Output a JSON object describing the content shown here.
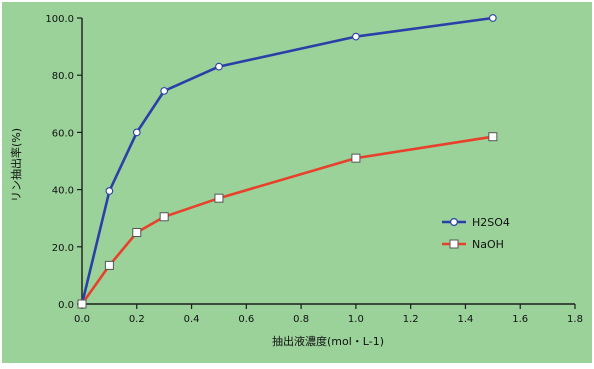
{
  "chart_data": {
    "type": "line",
    "title": "",
    "xlabel": "抽出液濃度(mol・L-1)",
    "ylabel": "リン抽出率(%)",
    "xlim": [
      0.0,
      1.8
    ],
    "ylim": [
      0.0,
      100.0
    ],
    "x_ticks": [
      "0.0",
      "0.2",
      "0.4",
      "0.6",
      "0.8",
      "1.0",
      "1.2",
      "1.4",
      "1.6",
      "1.8"
    ],
    "y_ticks": [
      "0.0",
      "20.0",
      "40.0",
      "60.0",
      "80.0",
      "100.0"
    ],
    "grid": false,
    "legend_position": "right",
    "series": [
      {
        "name": "H2SO4",
        "color": "#2b3fa8",
        "marker": "circle",
        "x": [
          0.0,
          0.1,
          0.2,
          0.3,
          0.5,
          1.0,
          1.5
        ],
        "y": [
          0.0,
          39.5,
          60.0,
          74.5,
          83.0,
          93.5,
          100.0
        ]
      },
      {
        "name": "NaOH",
        "color": "#e8402a",
        "marker": "square",
        "x": [
          0.0,
          0.1,
          0.2,
          0.3,
          0.5,
          1.0,
          1.5
        ],
        "y": [
          0.0,
          13.5,
          25.0,
          30.5,
          37.0,
          51.0,
          58.5
        ]
      }
    ],
    "colors": {
      "background": "#9ad29a",
      "frame": "#1c1c1c"
    }
  }
}
